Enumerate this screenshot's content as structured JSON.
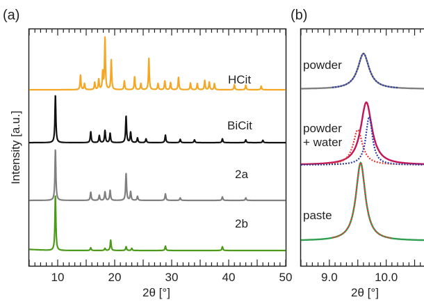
{
  "chart_data": [
    {
      "panel_label": "(a)",
      "type": "line",
      "xlabel": "2θ [°]",
      "ylabel": "Intensity [a.u.]",
      "xlim": [
        5,
        50
      ],
      "x_ticks": [
        10,
        20,
        30,
        40,
        50
      ],
      "y_ticks_labeled": false,
      "grid": false,
      "series": [
        {
          "name": "HCit",
          "color": "#f5a623",
          "baseline": 0.0,
          "peaks": [
            {
              "x": 14.0,
              "h": 0.28
            },
            {
              "x": 14.7,
              "h": 0.12
            },
            {
              "x": 16.5,
              "h": 0.14
            },
            {
              "x": 17.2,
              "h": 0.2
            },
            {
              "x": 17.9,
              "h": 0.33
            },
            {
              "x": 18.3,
              "h": 1.0
            },
            {
              "x": 19.4,
              "h": 0.57
            },
            {
              "x": 21.7,
              "h": 0.17
            },
            {
              "x": 23.5,
              "h": 0.25
            },
            {
              "x": 24.6,
              "h": 0.12
            },
            {
              "x": 26.0,
              "h": 0.6
            },
            {
              "x": 27.6,
              "h": 0.12
            },
            {
              "x": 28.8,
              "h": 0.17
            },
            {
              "x": 29.8,
              "h": 0.14
            },
            {
              "x": 31.2,
              "h": 0.24
            },
            {
              "x": 33.3,
              "h": 0.13
            },
            {
              "x": 34.5,
              "h": 0.12
            },
            {
              "x": 35.8,
              "h": 0.18
            },
            {
              "x": 36.6,
              "h": 0.15
            },
            {
              "x": 37.5,
              "h": 0.12
            },
            {
              "x": 41.0,
              "h": 0.1
            },
            {
              "x": 43.0,
              "h": 0.09
            },
            {
              "x": 45.7,
              "h": 0.07
            }
          ]
        },
        {
          "name": "BiCit",
          "color": "#111111",
          "baseline": 0.0,
          "peaks": [
            {
              "x": 9.6,
              "h": 1.0
            },
            {
              "x": 15.8,
              "h": 0.23
            },
            {
              "x": 17.3,
              "h": 0.15
            },
            {
              "x": 18.3,
              "h": 0.26
            },
            {
              "x": 19.2,
              "h": 0.2
            },
            {
              "x": 22.0,
              "h": 0.56
            },
            {
              "x": 22.8,
              "h": 0.22
            },
            {
              "x": 24.0,
              "h": 0.1
            },
            {
              "x": 25.5,
              "h": 0.08
            },
            {
              "x": 28.9,
              "h": 0.16
            },
            {
              "x": 31.5,
              "h": 0.07
            },
            {
              "x": 34.0,
              "h": 0.06
            },
            {
              "x": 38.9,
              "h": 0.08
            },
            {
              "x": 43.0,
              "h": 0.06
            },
            {
              "x": 46.0,
              "h": 0.05
            }
          ]
        },
        {
          "name": "2a",
          "color": "#808080",
          "baseline": 0.0,
          "peaks": [
            {
              "x": 9.6,
              "h": 1.0
            },
            {
              "x": 15.8,
              "h": 0.16
            },
            {
              "x": 17.3,
              "h": 0.1
            },
            {
              "x": 18.3,
              "h": 0.17
            },
            {
              "x": 19.2,
              "h": 0.2
            },
            {
              "x": 22.0,
              "h": 0.53
            },
            {
              "x": 22.8,
              "h": 0.17
            },
            {
              "x": 24.0,
              "h": 0.08
            },
            {
              "x": 28.9,
              "h": 0.13
            },
            {
              "x": 31.5,
              "h": 0.05
            },
            {
              "x": 38.9,
              "h": 0.07
            },
            {
              "x": 43.0,
              "h": 0.05
            }
          ]
        },
        {
          "name": "2b",
          "color": "#4c9a1a",
          "baseline": 0.0,
          "peaks": [
            {
              "x": 9.6,
              "h": 1.0
            },
            {
              "x": 15.8,
              "h": 0.05
            },
            {
              "x": 18.3,
              "h": 0.04
            },
            {
              "x": 19.3,
              "h": 0.19
            },
            {
              "x": 22.0,
              "h": 0.07
            },
            {
              "x": 23.0,
              "h": 0.04
            },
            {
              "x": 28.9,
              "h": 0.08
            },
            {
              "x": 38.9,
              "h": 0.07
            }
          ]
        }
      ]
    },
    {
      "panel_label": "(b)",
      "type": "line",
      "xlabel": "2θ [°]",
      "xlim": [
        8.5,
        10.6
      ],
      "x_ticks": [
        9.0,
        10.0
      ],
      "grid": false,
      "subpanels": [
        {
          "label": "powder",
          "measured": {
            "color": "#808080",
            "center": 9.6,
            "width": 0.24,
            "height": 1.0,
            "baseline": 0.0
          },
          "fit": {
            "color": "#2b3aa8",
            "style": "dotted",
            "range": [
              9.05,
              10.2
            ],
            "center": 9.6,
            "width": 0.24,
            "height": 1.0
          }
        },
        {
          "label": "powder\n+ water",
          "measured": {
            "color": "#c2185b",
            "center": 9.65,
            "width": 0.24,
            "height": 1.0,
            "baseline": 0.0
          },
          "fits": [
            {
              "color": "#c2185b",
              "style": "dotted",
              "center": 9.65,
              "width": 0.24,
              "height": 1.0
            },
            {
              "color": "#e53935",
              "style": "dotted",
              "center": 9.5,
              "width": 0.2,
              "height": 0.56
            },
            {
              "color": "#2b3aa8",
              "style": "dotted",
              "center": 9.7,
              "width": 0.14,
              "height": 0.77
            }
          ]
        },
        {
          "label": "paste",
          "measured": {
            "color": "#2e9e4f",
            "center": 9.55,
            "width": 0.2,
            "height": 1.0,
            "baseline": 0.0
          },
          "fit": {
            "color": "#e53935",
            "style": "dotted",
            "range": [
              9.05,
              10.1
            ],
            "center": 9.55,
            "width": 0.2,
            "height": 1.0
          }
        }
      ]
    }
  ]
}
